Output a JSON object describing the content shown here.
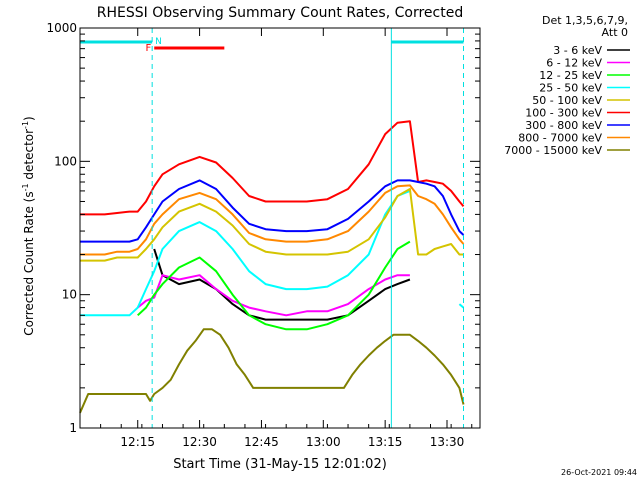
{
  "chart_data": {
    "type": "line",
    "title": "RHESSI Observing Summary Count Rates, Corrected",
    "xlabel": "Start Time (31-May-15 12:01:02)",
    "ylabel_main": "Corrected Count Rate (s",
    "ylabel_sup": "-1",
    "ylabel_tail": " detector",
    "ylabel_end": ")",
    "x_range_min": [
      0,
      97
    ],
    "y_scale": "log",
    "ylim": [
      1,
      1000
    ],
    "x_ticks": [
      {
        "min": 14,
        "label": "12:15"
      },
      {
        "min": 29,
        "label": "12:30"
      },
      {
        "min": 44,
        "label": "12:45"
      },
      {
        "min": 59,
        "label": "13:00"
      },
      {
        "min": 74,
        "label": "13:15"
      },
      {
        "min": 89,
        "label": "13:30"
      }
    ],
    "y_ticks": [
      {
        "v": 1,
        "label": "1"
      },
      {
        "v": 10,
        "label": "10"
      },
      {
        "v": 100,
        "label": "100"
      },
      {
        "v": 1000,
        "label": "1000"
      }
    ],
    "legend_header": [
      "Det 1,3,5,6,7,9,",
      "Att 0"
    ],
    "legend_position": "right",
    "timestamp": "26-Oct-2021 09:44",
    "flag_labels": {
      "F": "F",
      "N": "N"
    },
    "flags": {
      "night_bars": [
        [
          0,
          17.5
        ],
        [
          75.5,
          93
        ]
      ],
      "vlines": [
        17.5,
        93
      ],
      "solid_vlines": [
        0,
        75.5
      ],
      "flare_bar": [
        18,
        35
      ]
    },
    "colors": {
      "3-6": "#000000",
      "6-12": "#ff00ff",
      "12-25": "#00ff00",
      "25-50": "#00ffff",
      "50-100": "#d4c400",
      "100-300": "#ff0000",
      "300-800": "#0000ff",
      "800-7000": "#ff8800",
      "7000-15000": "#808000",
      "flag": "#00e0e0",
      "flare": "#ff0000"
    },
    "series": [
      {
        "name": "3 - 6 keV",
        "key": "3-6",
        "t": [
          0,
          14,
          16,
          18,
          20,
          24,
          29,
          33,
          37,
          41,
          45,
          50,
          55,
          60,
          65,
          70,
          74,
          77,
          80,
          84,
          87,
          91,
          93
        ],
        "v": [
          null,
          null,
          null,
          22,
          14,
          12,
          13,
          11,
          8.5,
          7,
          6.5,
          6.5,
          6.5,
          6.5,
          7,
          9,
          11,
          12,
          13,
          null,
          null,
          null,
          null
        ]
      },
      {
        "name": "6 - 12 keV",
        "key": "6-12",
        "t": [
          0,
          12,
          14,
          16,
          18,
          20,
          24,
          29,
          33,
          37,
          41,
          45,
          50,
          55,
          60,
          65,
          70,
          74,
          77,
          80,
          84,
          87,
          91,
          93
        ],
        "v": [
          null,
          null,
          8,
          9,
          9.5,
          14,
          13,
          14,
          11,
          9,
          8,
          7.5,
          7,
          7.5,
          7.5,
          8.5,
          11,
          13,
          14,
          14,
          null,
          null,
          null,
          null
        ]
      },
      {
        "name": "12 - 25 keV",
        "key": "12-25",
        "t": [
          0,
          12,
          14,
          16,
          18,
          20,
          24,
          29,
          33,
          37,
          41,
          45,
          50,
          55,
          60,
          65,
          70,
          74,
          77,
          80,
          84,
          87,
          91,
          93
        ],
        "v": [
          null,
          null,
          7,
          8,
          10,
          12,
          16,
          19,
          15,
          10,
          7,
          6,
          5.5,
          5.5,
          6,
          7,
          10,
          16,
          22,
          25,
          null,
          null,
          null,
          null
        ]
      },
      {
        "name": "25 - 50 keV",
        "key": "25-50",
        "t": [
          0,
          3,
          6,
          9,
          12,
          14,
          16,
          18,
          20,
          24,
          29,
          33,
          37,
          41,
          45,
          50,
          55,
          60,
          65,
          70,
          74,
          77,
          80,
          82,
          84,
          86,
          88,
          90,
          92,
          93
        ],
        "v": [
          7,
          7,
          7,
          7,
          7,
          8,
          11,
          15,
          22,
          30,
          35,
          30,
          22,
          15,
          12,
          11,
          11,
          11.5,
          14,
          20,
          40,
          55,
          60,
          null,
          null,
          null,
          null,
          null,
          8.5,
          8
        ]
      },
      {
        "name": "50 - 100 keV",
        "key": "50-100",
        "t": [
          0,
          3,
          6,
          9,
          12,
          14,
          16,
          18,
          20,
          24,
          29,
          33,
          37,
          41,
          45,
          50,
          55,
          60,
          65,
          70,
          74,
          77,
          80,
          82,
          84,
          86,
          88,
          90,
          92,
          93
        ],
        "v": [
          18,
          18,
          18,
          19,
          19,
          19,
          22,
          26,
          32,
          42,
          48,
          42,
          33,
          24,
          21,
          20,
          20,
          20,
          21,
          26,
          38,
          55,
          62,
          20,
          20,
          22,
          23,
          24,
          20,
          20
        ]
      },
      {
        "name": "100 - 300 keV",
        "key": "100-300",
        "t": [
          0,
          3,
          6,
          9,
          12,
          14,
          16,
          18,
          20,
          24,
          29,
          33,
          37,
          41,
          45,
          50,
          55,
          60,
          65,
          70,
          74,
          77,
          80,
          82,
          84,
          86,
          88,
          90,
          92,
          93
        ],
        "v": [
          40,
          40,
          40,
          41,
          42,
          42,
          50,
          65,
          80,
          95,
          108,
          98,
          75,
          55,
          50,
          50,
          50,
          52,
          62,
          95,
          160,
          195,
          200,
          70,
          72,
          70,
          68,
          60,
          50,
          46
        ]
      },
      {
        "name": "300 - 800 keV",
        "key": "300-800",
        "t": [
          0,
          3,
          6,
          9,
          12,
          14,
          16,
          18,
          20,
          24,
          29,
          33,
          37,
          41,
          45,
          50,
          55,
          60,
          65,
          70,
          74,
          77,
          80,
          82,
          84,
          86,
          88,
          90,
          92,
          93
        ],
        "v": [
          25,
          25,
          25,
          25,
          25,
          26,
          32,
          40,
          50,
          62,
          72,
          62,
          45,
          34,
          31,
          30,
          30,
          31,
          37,
          50,
          65,
          72,
          72,
          70,
          68,
          65,
          55,
          40,
          30,
          28
        ]
      },
      {
        "name": "800 - 7000 keV",
        "key": "800-7000",
        "t": [
          0,
          3,
          6,
          9,
          12,
          14,
          16,
          18,
          20,
          24,
          29,
          33,
          37,
          41,
          45,
          50,
          55,
          60,
          65,
          70,
          74,
          77,
          80,
          82,
          84,
          86,
          88,
          90,
          92,
          93
        ],
        "v": [
          20,
          20,
          20,
          21,
          21,
          22,
          26,
          34,
          40,
          52,
          58,
          52,
          40,
          29,
          26,
          25,
          25,
          26,
          30,
          42,
          58,
          65,
          66,
          55,
          52,
          48,
          40,
          32,
          26,
          24
        ]
      },
      {
        "name": "7000 - 15000 keV",
        "key": "7000-15000",
        "t": [
          0,
          2,
          5,
          8,
          11,
          14,
          16,
          17,
          18,
          20,
          22,
          24,
          26,
          28,
          30,
          32,
          34,
          36,
          38,
          40,
          42,
          44,
          46,
          48,
          50,
          52,
          54,
          56,
          58,
          60,
          62,
          64,
          66,
          68,
          70,
          72,
          74,
          76,
          78,
          80,
          82,
          84,
          86,
          88,
          90,
          92,
          93
        ],
        "v": [
          1.3,
          1.8,
          1.8,
          1.8,
          1.8,
          1.8,
          1.8,
          1.6,
          1.8,
          2,
          2.3,
          3,
          3.8,
          4.5,
          5.5,
          5.5,
          5,
          4,
          3,
          2.5,
          2,
          2,
          2,
          2,
          2,
          2,
          2,
          2,
          2,
          2,
          2,
          2,
          2.5,
          3,
          3.5,
          4,
          4.5,
          5,
          5,
          5,
          4.5,
          4,
          3.5,
          3,
          2.5,
          2,
          1.5
        ]
      }
    ]
  }
}
